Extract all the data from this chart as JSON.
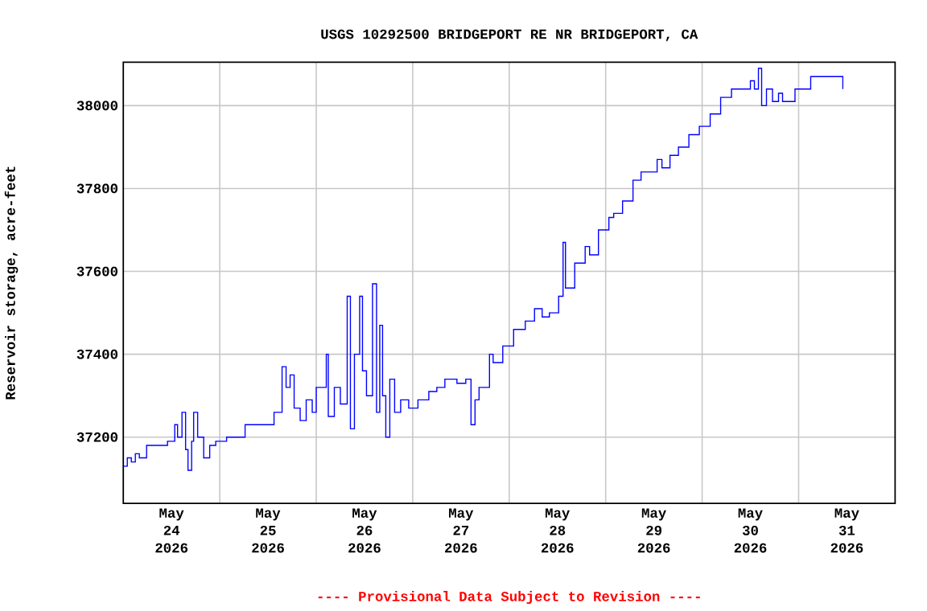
{
  "chart_data": {
    "type": "step",
    "title": "USGS 10292500 BRIDGEPORT RE NR BRIDGEPORT, CA",
    "ylabel": "Reservoir storage, acre-feet",
    "annotations": [
      "---- Provisional Data Subject to Revision ----"
    ],
    "xlim": [
      "2026-05-24T00:00",
      "2026-06-01T00:00"
    ],
    "xticks": [
      {
        "value": "2026-05-24T12:00",
        "label": "May 24 2026"
      },
      {
        "value": "2026-05-25T00:00",
        "label": null
      },
      {
        "value": "2026-05-25T12:00",
        "label": "May 25 2026"
      },
      {
        "value": "2026-05-26T00:00",
        "label": null
      },
      {
        "value": "2026-05-26T12:00",
        "label": "May 26 2026"
      },
      {
        "value": "2026-05-27T00:00",
        "label": null
      },
      {
        "value": "2026-05-27T12:00",
        "label": "May 27 2026"
      },
      {
        "value": "2026-05-28T00:00",
        "label": null
      },
      {
        "value": "2026-05-28T12:00",
        "label": "May 28 2026"
      },
      {
        "value": "2026-05-29T00:00",
        "label": null
      },
      {
        "value": "2026-05-29T12:00",
        "label": "May 29 2026"
      },
      {
        "value": "2026-05-30T00:00",
        "label": null
      },
      {
        "value": "2026-05-30T12:00",
        "label": "May 30 2026"
      },
      {
        "value": "2026-05-31T00:00",
        "label": null
      },
      {
        "value": "2026-05-31T12:00",
        "label": "May 31 2026"
      }
    ],
    "ylim": [
      37040,
      38105
    ],
    "yticks": [
      37200,
      37400,
      37600,
      37800,
      38000
    ],
    "grid": true,
    "color": "#0000ff",
    "x": [
      "2026-05-24T00:00",
      "2026-05-24T01:00",
      "2026-05-24T02:00",
      "2026-05-24T03:00",
      "2026-05-24T04:00",
      "2026-05-24T05:48",
      "2026-05-24T10:12",
      "2026-05-24T11:00",
      "2026-05-24T12:48",
      "2026-05-24T13:30",
      "2026-05-24T14:36",
      "2026-05-24T15:30",
      "2026-05-24T16:06",
      "2026-05-24T17:00",
      "2026-05-24T17:30",
      "2026-05-24T18:30",
      "2026-05-24T20:00",
      "2026-05-24T21:30",
      "2026-05-24T23:00",
      "2026-05-25T01:42",
      "2026-05-25T03:00",
      "2026-05-25T06:18",
      "2026-05-25T12:36",
      "2026-05-25T13:30",
      "2026-05-25T15:30",
      "2026-05-25T16:30",
      "2026-05-25T17:30",
      "2026-05-25T18:30",
      "2026-05-25T20:00",
      "2026-05-25T21:30",
      "2026-05-25T23:00",
      "2026-05-26T00:00",
      "2026-05-26T02:30",
      "2026-05-26T03:00",
      "2026-05-26T04:30",
      "2026-05-26T06:00",
      "2026-05-26T07:42",
      "2026-05-26T08:30",
      "2026-05-26T09:30",
      "2026-05-26T10:48",
      "2026-05-26T11:30",
      "2026-05-26T12:30",
      "2026-05-26T14:00",
      "2026-05-26T15:00",
      "2026-05-26T15:48",
      "2026-05-26T16:30",
      "2026-05-26T17:18",
      "2026-05-26T18:18",
      "2026-05-26T19:30",
      "2026-05-26T21:00",
      "2026-05-26T23:00",
      "2026-05-27T01:18",
      "2026-05-27T04:00",
      "2026-05-27T06:00",
      "2026-05-27T08:00",
      "2026-05-27T11:00",
      "2026-05-27T13:12",
      "2026-05-27T14:30",
      "2026-05-27T15:30",
      "2026-05-27T16:30",
      "2026-05-27T19:06",
      "2026-05-27T20:00",
      "2026-05-27T22:24",
      "2026-05-28T01:06",
      "2026-05-28T04:00",
      "2026-05-28T06:18",
      "2026-05-28T08:12",
      "2026-05-28T10:00",
      "2026-05-28T12:18",
      "2026-05-28T13:24",
      "2026-05-28T14:00",
      "2026-05-28T16:18",
      "2026-05-28T18:54",
      "2026-05-28T20:00",
      "2026-05-28T22:12",
      "2026-05-29T00:48",
      "2026-05-29T02:00",
      "2026-05-29T04:12",
      "2026-05-29T06:48",
      "2026-05-29T08:48",
      "2026-05-29T11:00",
      "2026-05-29T12:48",
      "2026-05-29T14:00",
      "2026-05-29T16:00",
      "2026-05-29T18:06",
      "2026-05-29T20:42",
      "2026-05-29T23:18",
      "2026-05-30T02:00",
      "2026-05-30T04:36",
      "2026-05-30T07:18",
      "2026-05-30T11:12",
      "2026-05-30T12:00",
      "2026-05-30T13:00",
      "2026-05-30T14:00",
      "2026-05-30T14:48",
      "2026-05-30T16:00",
      "2026-05-30T17:30",
      "2026-05-30T19:00",
      "2026-05-30T20:00",
      "2026-05-30T23:06",
      "2026-05-31T02:18",
      "2026-05-31T03:00",
      "2026-05-31T05:48",
      "2026-05-31T10:36",
      "2026-05-31T11:00"
    ],
    "values": [
      37130,
      37150,
      37140,
      37160,
      37150,
      37180,
      37180,
      37190,
      37230,
      37200,
      37260,
      37170,
      37120,
      37190,
      37260,
      37200,
      37150,
      37180,
      37190,
      37200,
      37200,
      37230,
      37230,
      37260,
      37370,
      37320,
      37350,
      37270,
      37240,
      37290,
      37260,
      37320,
      37400,
      37250,
      37320,
      37280,
      37540,
      37220,
      37400,
      37540,
      37360,
      37300,
      37570,
      37260,
      37470,
      37300,
      37200,
      37340,
      37260,
      37290,
      37270,
      37290,
      37310,
      37320,
      37340,
      37330,
      37340,
      37230,
      37290,
      37320,
      37400,
      37380,
      37420,
      37460,
      37480,
      37510,
      37490,
      37500,
      37540,
      37670,
      37560,
      37620,
      37660,
      37640,
      37700,
      37730,
      37740,
      37770,
      37820,
      37840,
      37840,
      37870,
      37850,
      37880,
      37900,
      37930,
      37950,
      37980,
      38020,
      38040,
      38040,
      38060,
      38040,
      38090,
      38000,
      38040,
      38010,
      38030,
      38010,
      38040,
      38040,
      38070,
      38070,
      38070,
      38040
    ]
  }
}
